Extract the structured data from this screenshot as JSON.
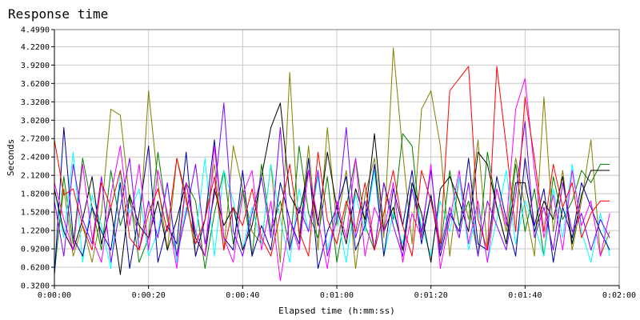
{
  "chart_data": {
    "type": "line",
    "title": "Response time",
    "xlabel": "Elapsed time (h:mm:ss)",
    "ylabel": "Seconds",
    "xlim": [
      0,
      120
    ],
    "ylim": [
      0.32,
      4.499
    ],
    "y_ticks": [
      0.32,
      0.62,
      0.92,
      1.22,
      1.52,
      1.82,
      2.12,
      2.42,
      2.72,
      3.02,
      3.32,
      3.62,
      3.92,
      4.22,
      4.499
    ],
    "y_tick_labels": [
      "0.3200",
      "0.6200",
      "0.9200",
      "1.2200",
      "1.5200",
      "1.8200",
      "2.1200",
      "2.4200",
      "2.7200",
      "3.0200",
      "3.3200",
      "3.6200",
      "3.9200",
      "4.2200",
      "4.4990"
    ],
    "x_ticks": [
      0,
      20,
      40,
      60,
      80,
      100,
      120
    ],
    "x_tick_labels": [
      "0:00:00",
      "0:00:20",
      "0:00:40",
      "0:01:00",
      "0:01:20",
      "0:01:40",
      "0:02:00"
    ],
    "grid": true,
    "x_seconds": [
      0,
      2,
      4,
      6,
      8,
      10,
      12,
      14,
      16,
      18,
      20,
      22,
      24,
      26,
      28,
      30,
      32,
      34,
      36,
      38,
      40,
      42,
      44,
      46,
      48,
      50,
      52,
      54,
      56,
      58,
      60,
      62,
      64,
      66,
      68,
      70,
      72,
      74,
      76,
      78,
      80,
      82,
      84,
      86,
      88,
      90,
      92,
      94,
      96,
      98,
      100,
      102,
      104,
      106,
      108,
      110,
      112,
      114,
      116,
      118
    ],
    "series": [
      {
        "color": "#808000",
        "values": [
          0.6,
          1.9,
          0.8,
          1.3,
          0.7,
          1.5,
          3.2,
          3.1,
          1.7,
          1.1,
          3.5,
          2.0,
          0.9,
          2.4,
          1.8,
          0.8,
          1.4,
          2.3,
          0.9,
          2.6,
          1.9,
          1.2,
          1.0,
          2.3,
          0.7,
          3.8,
          1.1,
          2.6,
          0.9,
          2.9,
          1.3,
          2.2,
          0.6,
          1.8,
          2.4,
          1.1,
          4.2,
          2.5,
          1.0,
          3.2,
          3.5,
          2.6,
          0.8,
          2.1,
          1.4,
          2.7,
          0.9,
          1.9,
          1.2,
          2.4,
          1.6,
          0.8,
          3.4,
          1.2,
          2.2,
          0.9,
          1.7,
          2.7,
          0.8,
          1.2
        ]
      },
      {
        "color": "#008000",
        "values": [
          0.5,
          2.1,
          1.0,
          2.4,
          1.6,
          0.9,
          2.2,
          1.3,
          1.8,
          0.7,
          1.1,
          2.5,
          1.4,
          0.8,
          2.0,
          1.7,
          0.6,
          1.5,
          2.2,
          1.0,
          1.9,
          0.8,
          2.3,
          1.2,
          1.7,
          0.9,
          2.6,
          1.5,
          1.1,
          2.1,
          0.7,
          1.6,
          2.4,
          1.3,
          0.9,
          2.0,
          1.4,
          2.8,
          2.6,
          1.1,
          1.8,
          0.9,
          2.2,
          1.3,
          1.7,
          0.8,
          2.5,
          1.6,
          1.0,
          2.3,
          1.2,
          1.9,
          0.8,
          2.1,
          1.4,
          1.7,
          2.2,
          2.0,
          2.3,
          2.3
        ]
      },
      {
        "color": "#00ffff",
        "values": [
          1.9,
          1.1,
          2.5,
          0.7,
          1.8,
          1.3,
          0.6,
          2.2,
          1.5,
          1.9,
          0.8,
          1.2,
          2.0,
          0.7,
          1.6,
          1.1,
          2.4,
          0.8,
          2.2,
          1.7,
          0.9,
          1.6,
          1.0,
          2.3,
          1.4,
          0.7,
          1.9,
          1.2,
          2.1,
          0.9,
          1.5,
          0.7,
          1.8,
          1.2,
          2.2,
          0.8,
          1.5,
          1.0,
          2.0,
          1.3,
          0.8,
          1.7,
          1.2,
          2.1,
          0.9,
          1.6,
          0.7,
          1.4,
          2.2,
          1.0,
          1.7,
          1.3,
          0.8,
          1.9,
          1.1,
          2.3,
          1.2,
          0.7,
          1.5,
          0.8
        ]
      },
      {
        "color": "#0000a0",
        "values": [
          0.5,
          2.9,
          1.1,
          0.8,
          1.6,
          1.2,
          0.9,
          2.0,
          0.6,
          1.5,
          2.6,
          0.7,
          1.3,
          1.0,
          2.5,
          0.8,
          1.4,
          2.7,
          1.1,
          0.9,
          2.2,
          0.8,
          1.3,
          0.9,
          2.0,
          1.4,
          1.0,
          2.4,
          0.6,
          1.2,
          1.6,
          2.1,
          0.9,
          1.3,
          2.3,
          0.8,
          1.9,
          1.3,
          2.2,
          1.0,
          1.8,
          0.8,
          1.5,
          1.2,
          2.4,
          1.0,
          0.9,
          2.1,
          1.4,
          0.8,
          2.4,
          1.3,
          1.9,
          0.7,
          1.6,
          1.1,
          2.0,
          1.6,
          1.2,
          0.9
        ]
      },
      {
        "color": "#000000",
        "values": [
          1.9,
          1.2,
          0.9,
          1.4,
          2.1,
          1.0,
          1.6,
          0.5,
          1.8,
          1.3,
          1.1,
          1.7,
          0.9,
          1.4,
          2.0,
          1.1,
          0.8,
          1.9,
          1.3,
          1.6,
          0.9,
          1.3,
          2.1,
          2.9,
          3.3,
          1.8,
          1.5,
          2.2,
          1.3,
          2.5,
          1.6,
          1.0,
          1.9,
          1.4,
          2.8,
          1.2,
          1.6,
          0.9,
          2.0,
          1.5,
          0.7,
          1.9,
          2.1,
          1.7,
          1.2,
          2.5,
          2.3,
          1.6,
          1.0,
          2.0,
          2.0,
          1.2,
          1.7,
          1.4,
          2.1,
          1.0,
          1.8,
          2.2,
          2.2,
          2.2
        ]
      },
      {
        "color": "#ff00ff",
        "values": [
          2.0,
          1.4,
          0.9,
          2.3,
          1.1,
          0.7,
          1.8,
          2.6,
          1.3,
          2.3,
          0.9,
          2.2,
          1.5,
          0.6,
          2.0,
          1.2,
          0.8,
          2.6,
          1.1,
          0.7,
          1.8,
          2.2,
          0.9,
          1.7,
          0.4,
          1.4,
          0.9,
          2.2,
          1.4,
          0.6,
          1.7,
          1.1,
          2.4,
          0.8,
          1.6,
          1.2,
          2.0,
          0.7,
          1.5,
          1.1,
          2.3,
          0.6,
          1.4,
          2.2,
          1.0,
          1.7,
          0.7,
          1.9,
          1.3,
          3.2,
          3.7,
          2.2,
          1.1,
          1.8,
          0.9,
          2.2,
          1.3,
          1.7,
          0.8,
          1.5
        ]
      },
      {
        "color": "#8000ff",
        "values": [
          1.7,
          0.8,
          2.3,
          1.4,
          1.0,
          2.1,
          0.7,
          1.6,
          2.4,
          0.9,
          1.7,
          1.1,
          2.0,
          0.8,
          1.5,
          2.3,
          1.0,
          1.8,
          3.3,
          1.2,
          0.8,
          1.5,
          2.1,
          1.1,
          2.9,
          0.9,
          1.6,
          1.2,
          2.2,
          0.8,
          1.4,
          2.9,
          1.1,
          1.7,
          0.9,
          2.0,
          1.3,
          0.8,
          1.9,
          1.2,
          2.2,
          0.9,
          1.6,
          1.1,
          2.0,
          0.8,
          1.7,
          1.3,
          0.9,
          1.8,
          3.0,
          1.1,
          1.6,
          0.9,
          2.0,
          1.2,
          1.5,
          0.9,
          1.4,
          1.1
        ]
      },
      {
        "color": "#ff0000",
        "values": [
          2.7,
          1.8,
          1.9,
          1.3,
          0.9,
          2.0,
          1.6,
          2.2,
          1.1,
          0.9,
          1.5,
          1.9,
          1.2,
          2.4,
          1.7,
          1.0,
          1.4,
          2.1,
          0.9,
          1.6,
          1.3,
          1.9,
          1.1,
          0.8,
          1.5,
          2.3,
          1.2,
          0.8,
          2.5,
          1.4,
          1.0,
          1.7,
          1.2,
          2.0,
          0.9,
          1.5,
          2.2,
          1.3,
          0.8,
          2.2,
          1.7,
          1.0,
          3.5,
          3.7,
          3.9,
          1.4,
          0.9,
          3.9,
          2.6,
          1.2,
          3.4,
          2.4,
          1.2,
          2.3,
          1.6,
          2.0,
          1.1,
          1.5,
          1.7,
          1.7
        ]
      }
    ]
  }
}
